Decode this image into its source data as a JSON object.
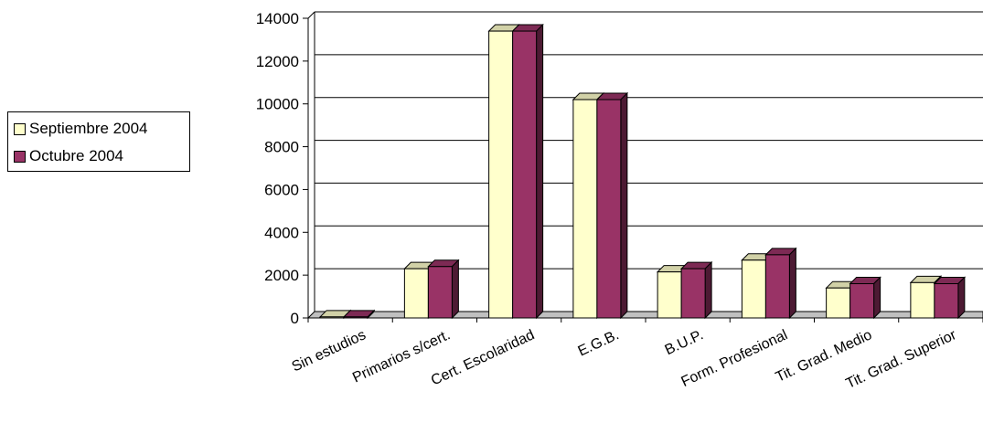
{
  "chart_data": {
    "type": "bar",
    "categories": [
      "Sin estudios",
      "Primarios s/cert.",
      "Cert. Escolaridad",
      "E.G.B.",
      "B.U.P.",
      "Form. Profesional",
      "Tit. Grad. Medio",
      "Tit. Grad. Superior"
    ],
    "series": [
      {
        "name": "Septiembre 2004",
        "values": [
          50,
          2300,
          13400,
          10200,
          2150,
          2700,
          1400,
          1650
        ],
        "color": "#FFFFCC"
      },
      {
        "name": "Octubre 2004",
        "values": [
          50,
          2400,
          13400,
          10200,
          2300,
          2950,
          1600,
          1600
        ],
        "color": "#993366"
      }
    ],
    "yticks": [
      0,
      2000,
      4000,
      6000,
      8000,
      10000,
      12000,
      14000
    ],
    "ylim": [
      0,
      14000
    ],
    "grid": true,
    "legend": "left",
    "title": "",
    "xlabel": "",
    "ylabel": ""
  }
}
